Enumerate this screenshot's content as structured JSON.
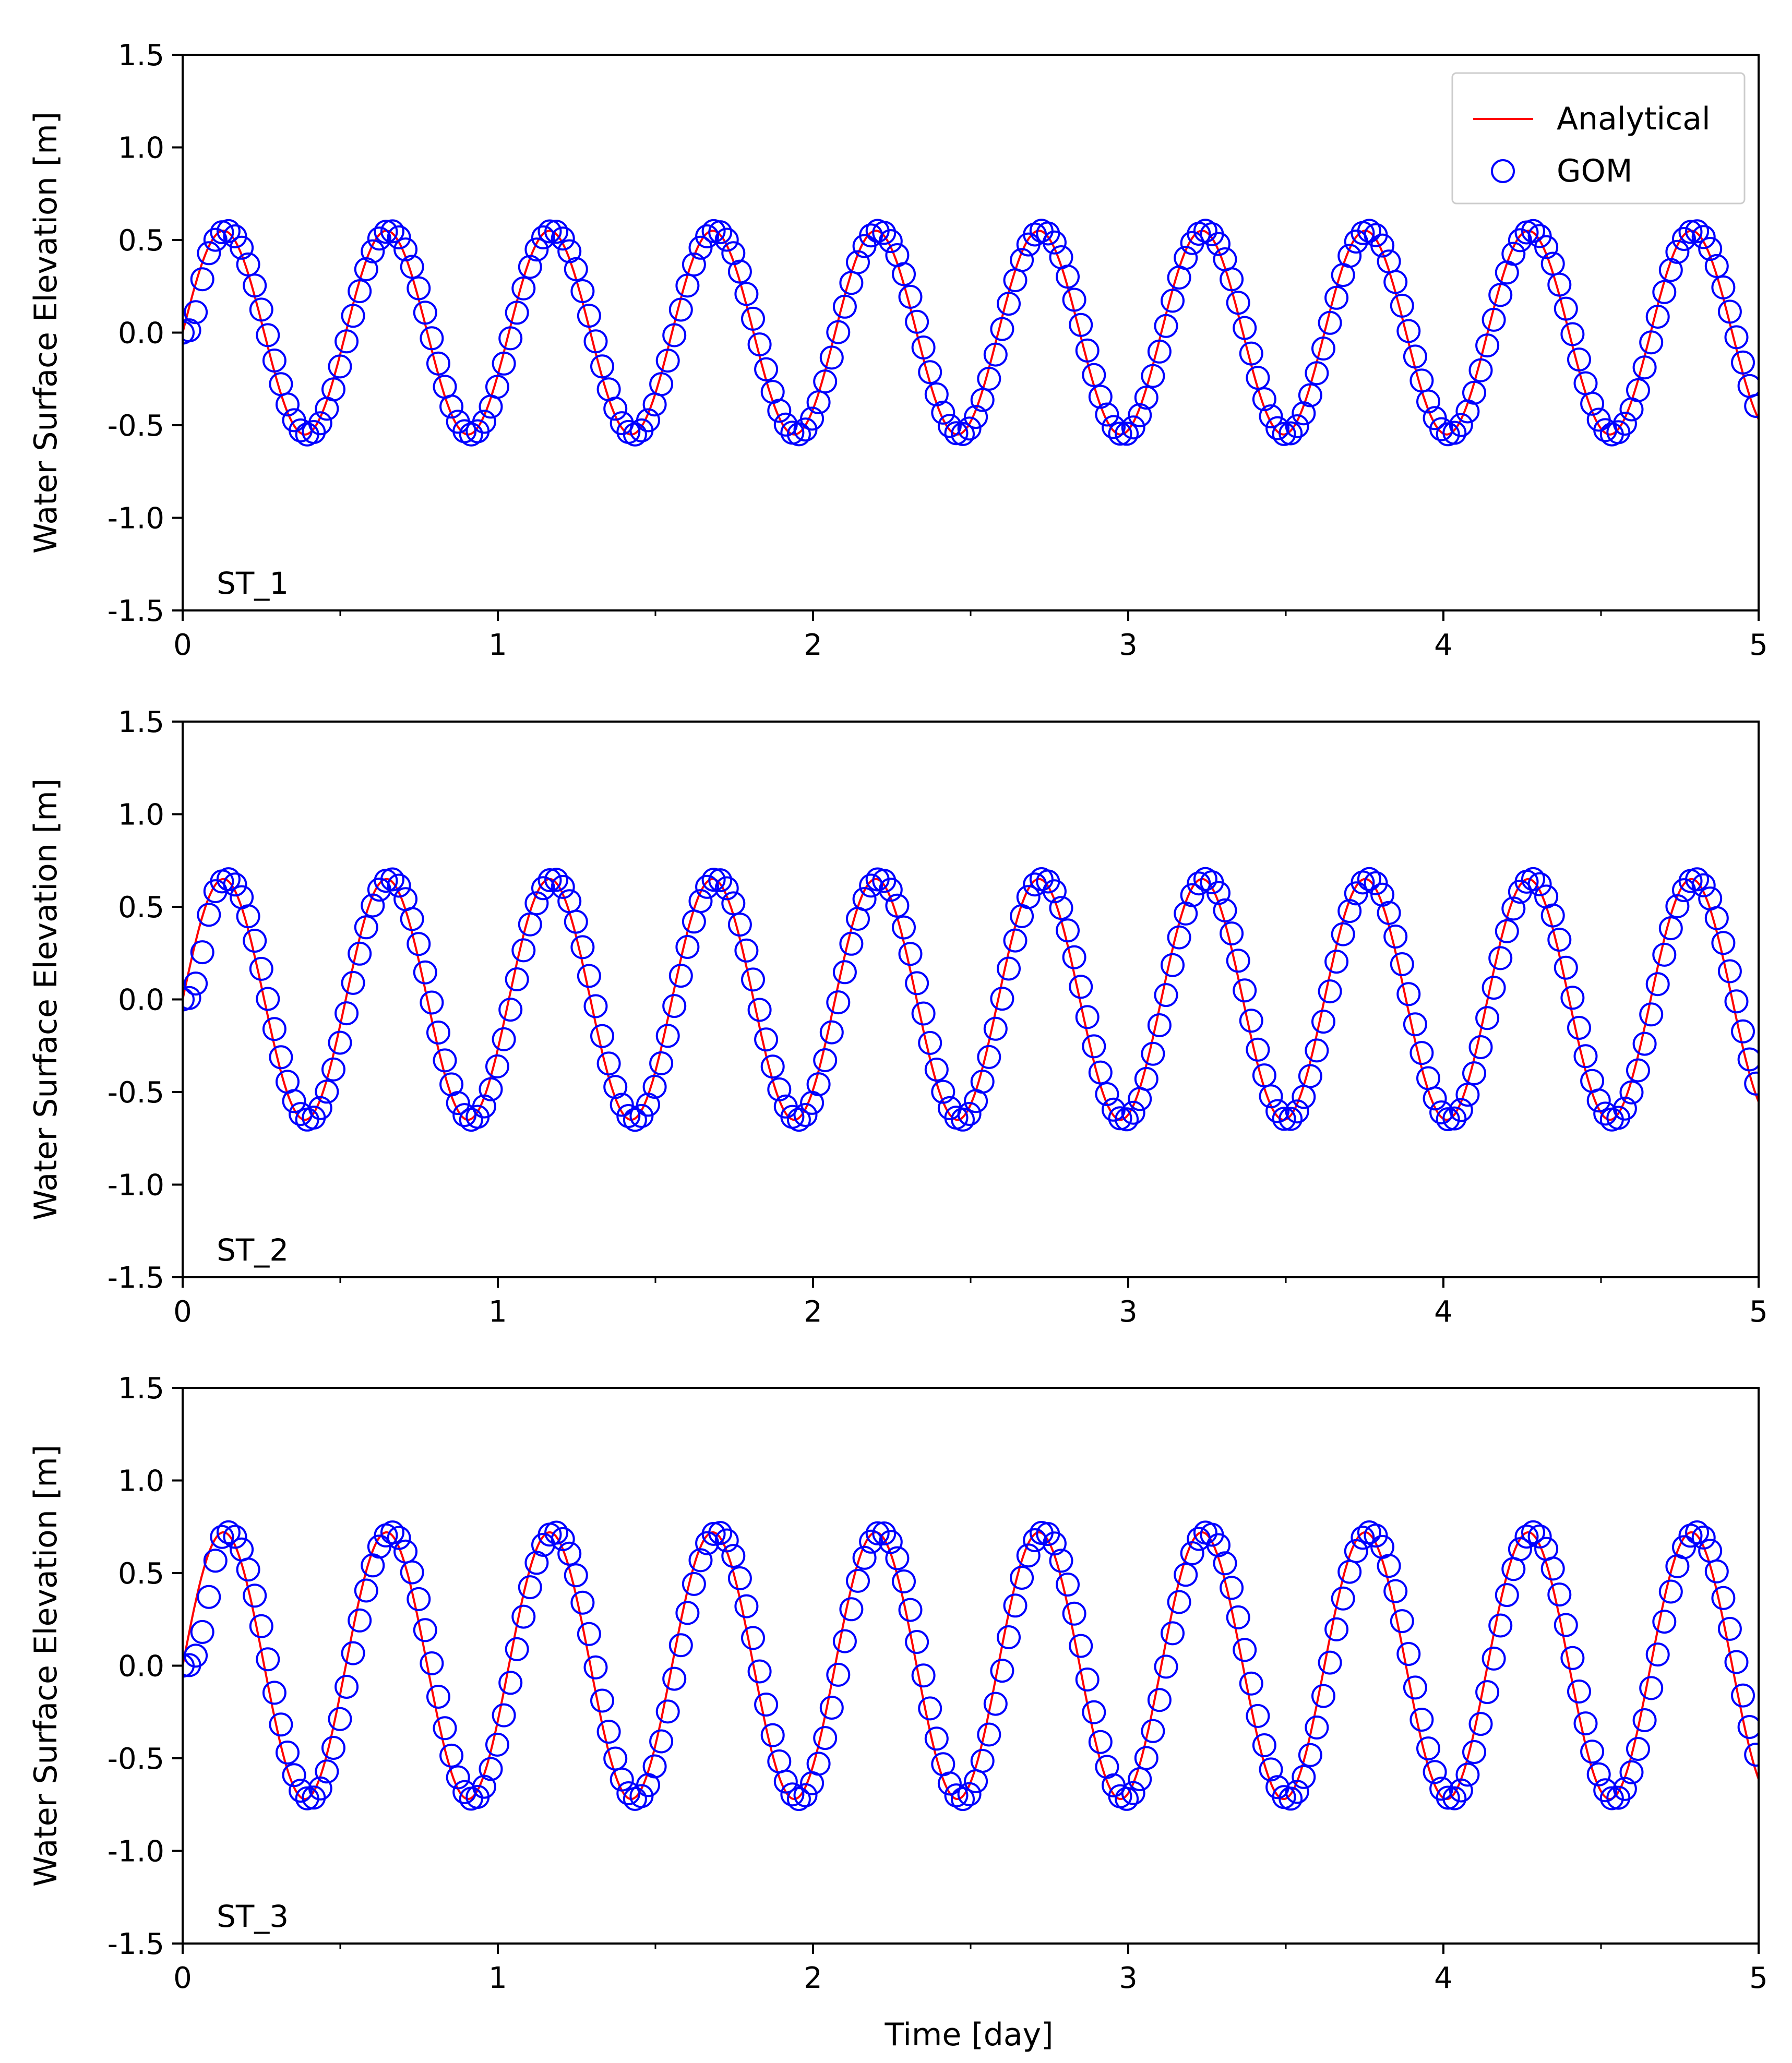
{
  "chart_data": {
    "type": "line",
    "layout": "3 vertically stacked panels sharing x axis",
    "xlabel": "Time [day]",
    "ylabel": "Water Surface Elevation [m]",
    "xlim": [
      0,
      5
    ],
    "ylim": [
      -1.5,
      1.5
    ],
    "x_ticks": [
      0,
      1,
      2,
      3,
      4,
      5
    ],
    "x_tick_labels": [
      "0",
      "1",
      "2",
      "3",
      "4",
      "5"
    ],
    "y_ticks": [
      -1.5,
      -1.0,
      -0.5,
      0.0,
      0.5,
      1.0,
      1.5
    ],
    "y_tick_labels": [
      "-1.5",
      "-1.0",
      "-0.5",
      "0.0",
      "0.5",
      "1.0",
      "1.5"
    ],
    "grid": false,
    "legend": {
      "placement": "top-right of first panel",
      "entries": [
        {
          "label": "Analytical",
          "marker": "line",
          "color": "#ff0000"
        },
        {
          "label": "GOM",
          "marker": "open-circle",
          "color": "#0000ff"
        }
      ]
    },
    "period_days": 0.5175,
    "marker_spacing_days": 0.0208,
    "panels": [
      {
        "label": "ST_1",
        "series": [
          {
            "name": "Analytical",
            "style": "line",
            "color": "#ff0000",
            "amplitude": 0.55,
            "ramp_days": 0,
            "x": [
              0,
              0.129,
              0.388,
              0.647,
              0.906,
              1.164,
              1.423,
              1.682,
              1.941,
              2.199,
              2.458,
              2.717,
              2.976,
              3.234,
              3.493,
              3.752,
              4.011,
              4.269,
              4.528,
              4.787,
              5.0
            ],
            "y": [
              0.0,
              0.55,
              -0.55,
              0.55,
              -0.55,
              0.55,
              -0.55,
              0.55,
              -0.55,
              0.55,
              -0.55,
              0.55,
              -0.55,
              0.55,
              -0.55,
              0.55,
              -0.55,
              0.55,
              -0.55,
              0.55,
              -0.45
            ]
          },
          {
            "name": "GOM",
            "style": "markers",
            "color": "#0000ff",
            "amplitude": 0.55,
            "ramp_days": 0.08,
            "x": [
              0,
              0.145,
              0.404,
              0.663,
              0.922,
              1.18,
              1.439,
              1.698,
              1.957,
              2.215,
              2.474,
              2.733,
              2.992,
              3.25,
              3.509,
              3.768,
              4.027,
              4.285,
              4.544,
              4.803,
              5.0
            ],
            "y": [
              0.0,
              0.55,
              -0.55,
              0.55,
              -0.55,
              0.55,
              -0.55,
              0.55,
              -0.55,
              0.55,
              -0.55,
              0.55,
              -0.55,
              0.55,
              -0.55,
              0.55,
              -0.55,
              0.55,
              -0.55,
              0.55,
              -0.45
            ]
          }
        ]
      },
      {
        "label": "ST_2",
        "series": [
          {
            "name": "Analytical",
            "style": "line",
            "color": "#ff0000",
            "amplitude": 0.65,
            "ramp_days": 0,
            "x": [
              0,
              0.129,
              0.388,
              0.647,
              0.906,
              1.164,
              1.423,
              1.682,
              1.941,
              2.199,
              2.458,
              2.717,
              2.976,
              3.234,
              3.493,
              3.752,
              4.011,
              4.269,
              4.528,
              4.787,
              5.0
            ],
            "y": [
              0.0,
              0.68,
              -0.65,
              0.65,
              -0.65,
              0.65,
              -0.65,
              0.65,
              -0.65,
              0.65,
              -0.65,
              0.65,
              -0.65,
              0.65,
              -0.65,
              0.65,
              -0.65,
              0.65,
              -0.65,
              0.65,
              -0.5
            ]
          },
          {
            "name": "GOM",
            "style": "markers",
            "color": "#0000ff",
            "amplitude": 0.65,
            "ramp_days": 0.1,
            "x": [
              0,
              0.16,
              0.395,
              0.655,
              0.914,
              1.172,
              1.431,
              1.69,
              1.949,
              2.207,
              2.466,
              2.725,
              2.984,
              3.242,
              3.501,
              3.76,
              4.019,
              4.277,
              4.536,
              4.795,
              5.0
            ],
            "y": [
              0.0,
              0.65,
              -0.68,
              0.65,
              -0.65,
              0.65,
              -0.65,
              0.65,
              -0.65,
              0.65,
              -0.65,
              0.65,
              -0.65,
              0.65,
              -0.65,
              0.65,
              -0.65,
              0.65,
              -0.65,
              0.65,
              -0.5
            ]
          }
        ]
      },
      {
        "label": "ST_3",
        "series": [
          {
            "name": "Analytical",
            "style": "line",
            "color": "#ff0000",
            "amplitude": 0.72,
            "ramp_days": 0,
            "x": [
              0,
              0.129,
              0.388,
              0.647,
              0.906,
              1.164,
              1.423,
              1.682,
              1.941,
              2.199,
              2.458,
              2.717,
              2.976,
              3.234,
              3.493,
              3.752,
              4.011,
              4.269,
              4.528,
              4.787,
              5.0
            ],
            "y": [
              0.0,
              0.75,
              -0.72,
              0.72,
              -0.72,
              0.72,
              -0.72,
              0.72,
              -0.72,
              0.72,
              -0.72,
              0.72,
              -0.72,
              0.72,
              -0.72,
              0.72,
              -0.72,
              0.72,
              -0.72,
              0.72,
              -0.55
            ]
          },
          {
            "name": "GOM",
            "style": "markers",
            "color": "#0000ff",
            "amplitude": 0.72,
            "ramp_days": 0.13,
            "x": [
              0,
              0.17,
              0.4,
              0.66,
              0.915,
              1.173,
              1.432,
              1.691,
              1.95,
              2.208,
              2.467,
              2.726,
              2.985,
              3.243,
              3.502,
              3.761,
              4.02,
              4.278,
              4.537,
              4.796,
              5.0
            ],
            "y": [
              0.0,
              0.72,
              -0.75,
              0.72,
              -0.72,
              0.72,
              -0.72,
              0.72,
              -0.72,
              0.72,
              -0.72,
              0.72,
              -0.72,
              0.72,
              -0.72,
              0.72,
              -0.72,
              0.72,
              -0.72,
              0.72,
              -0.55
            ]
          }
        ]
      }
    ]
  }
}
